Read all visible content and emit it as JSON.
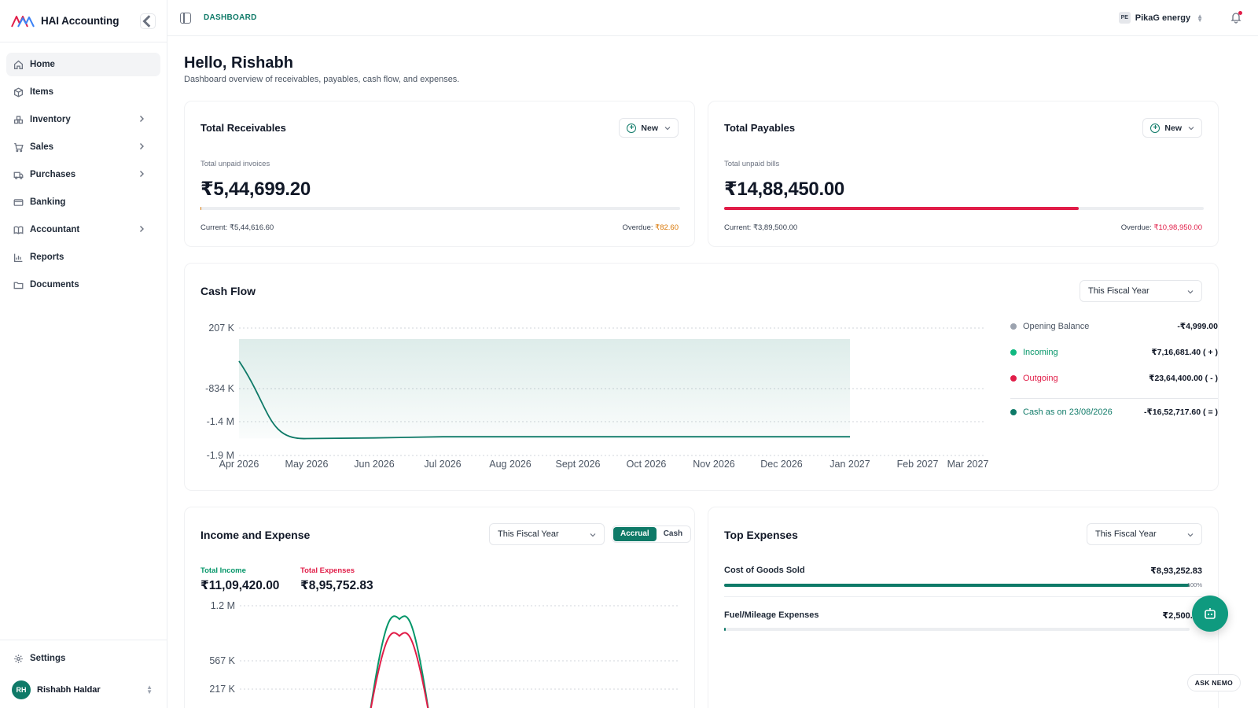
{
  "app": {
    "name": "HAI Accounting"
  },
  "sidebar": {
    "items": [
      {
        "label": "Home",
        "icon": "home-icon",
        "active": true,
        "expandable": false
      },
      {
        "label": "Items",
        "icon": "box-icon",
        "active": false,
        "expandable": false
      },
      {
        "label": "Inventory",
        "icon": "boxes-icon",
        "active": false,
        "expandable": true
      },
      {
        "label": "Sales",
        "icon": "cart-icon",
        "active": false,
        "expandable": true
      },
      {
        "label": "Purchases",
        "icon": "truck-icon",
        "active": false,
        "expandable": true
      },
      {
        "label": "Banking",
        "icon": "card-icon",
        "active": false,
        "expandable": false
      },
      {
        "label": "Accountant",
        "icon": "book-icon",
        "active": false,
        "expandable": true
      },
      {
        "label": "Reports",
        "icon": "bar-chart-icon",
        "active": false,
        "expandable": false
      },
      {
        "label": "Documents",
        "icon": "folder-icon",
        "active": false,
        "expandable": false
      }
    ],
    "settings_label": "Settings",
    "user": {
      "initials": "RH",
      "name": "Rishabh Haldar"
    }
  },
  "topbar": {
    "breadcrumb": "DASHBOARD",
    "org_badge": "PE",
    "org_name": "PikaG energy"
  },
  "header": {
    "greeting": "Hello, Rishabh",
    "subtitle": "Dashboard overview of receivables, payables, cash flow, and expenses."
  },
  "receivables": {
    "title": "Total Receivables",
    "new_label": "New",
    "label": "Total unpaid invoices",
    "amount": "₹5,44,699.20",
    "current_label": "Current:",
    "current_value": "₹5,44,616.60",
    "overdue_label": "Overdue:",
    "overdue_value": "₹82.60",
    "overdue_fraction": 0.0002,
    "overdue_color": "#d97706"
  },
  "payables": {
    "title": "Total Payables",
    "new_label": "New",
    "label": "Total unpaid bills",
    "amount": "₹14,88,450.00",
    "current_label": "Current:",
    "current_value": "₹3,89,500.00",
    "overdue_label": "Overdue:",
    "overdue_value": "₹10,98,950.00",
    "overdue_fraction": 0.74,
    "overdue_color": "#e11d48"
  },
  "cashflow": {
    "title": "Cash Flow",
    "period": "This Fiscal Year",
    "legend": [
      {
        "label": "Opening Balance",
        "value": "-₹4,999.00",
        "color": "#9ca3af",
        "label_color": "#4b5563"
      },
      {
        "label": "Incoming",
        "value": "₹7,16,681.40 ( + )",
        "color": "#10b981",
        "label_color": "#059669"
      },
      {
        "label": "Outgoing",
        "value": "₹23,64,400.00 ( - )",
        "color": "#e11d48",
        "label_color": "#e11d48"
      },
      {
        "label": "Cash as on 23/08/2026",
        "value": "-₹16,52,717.60 ( = )",
        "color": "#0f7a68",
        "label_color": "#0f7a68"
      }
    ]
  },
  "income_expense": {
    "title": "Income and Expense",
    "period": "This Fiscal Year",
    "toggle": [
      "Accrual",
      "Cash"
    ],
    "total_income_label": "Total Income",
    "total_income": "₹11,09,420.00",
    "total_expenses_label": "Total Expenses",
    "total_expenses": "₹8,95,752.83",
    "income_color": "#059669",
    "expense_color": "#e11d48"
  },
  "top_expenses": {
    "title": "Top Expenses",
    "period": "This Fiscal Year",
    "items": [
      {
        "label": "Cost of Goods Sold",
        "value": "₹8,93,252.83",
        "percent_label": "100%",
        "fraction": 1.0
      },
      {
        "label": "Fuel/Mileage Expenses",
        "value": "₹2,500.00",
        "fraction": 0.003
      }
    ]
  },
  "assistant": {
    "label": "ASK NEMO"
  },
  "chart_data": [
    {
      "type": "area",
      "title": "Cash Flow",
      "x": [
        "Apr 2026",
        "May 2026",
        "Jun 2026",
        "Jul 2026",
        "Aug 2026",
        "Sept 2026",
        "Oct 2026",
        "Nov 2026",
        "Dec 2026",
        "Jan 2027",
        "Feb 2027",
        "Mar 2027"
      ],
      "y_ticks": [
        "207 K",
        "-834 K",
        "-1.4 M",
        "-1.9 M"
      ],
      "ylim": [
        -1900000,
        207000
      ],
      "series": [
        {
          "values": [
            -340000,
            -1620000,
            -1610000,
            -1590000,
            -1590000,
            -1590000,
            -1590000,
            -1590000,
            -1590000,
            -1590000,
            null,
            null
          ]
        }
      ],
      "grid": true,
      "legend": "right"
    },
    {
      "type": "line",
      "title": "Income and Expense",
      "y_ticks": [
        "1.2 M",
        "567 K",
        "217 K"
      ],
      "series": [
        {
          "values": [
            0,
            0,
            0,
            0,
            1109420,
            0
          ]
        },
        {
          "values": [
            0,
            0,
            0,
            0,
            895752.83,
            0
          ]
        }
      ],
      "grid": true
    }
  ]
}
